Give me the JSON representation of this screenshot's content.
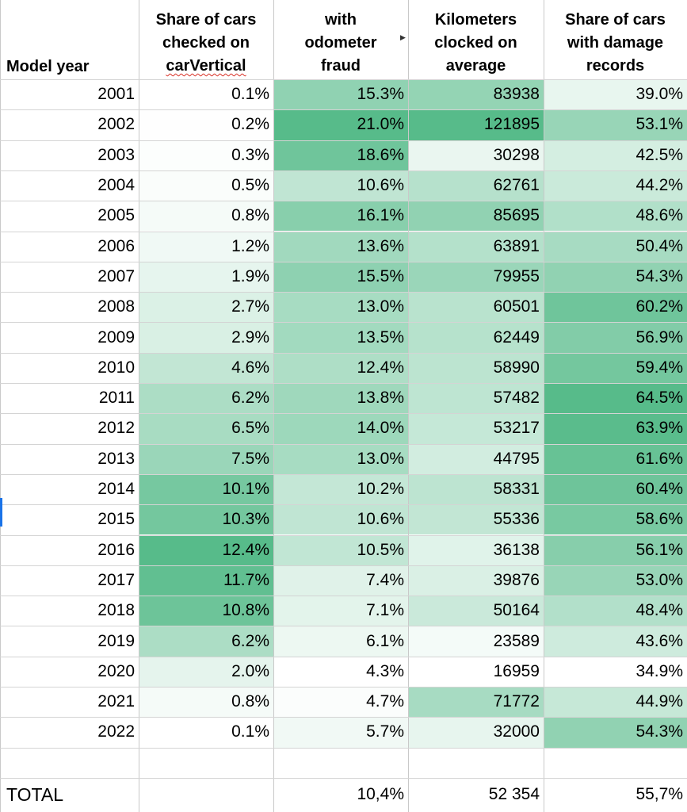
{
  "headers": {
    "model_year": "Model year",
    "share_checked": [
      "Share of cars",
      "checked on",
      "carVertical"
    ],
    "odometer_fraud": [
      "with",
      "odometer",
      "fraud"
    ],
    "km_clocked": [
      "Kilometers",
      "clocked on",
      "average"
    ],
    "damage_records": [
      "Share of cars",
      "with damage",
      "records"
    ]
  },
  "rows": [
    {
      "year": "2001",
      "share": "0.1%",
      "fraud": "15.3%",
      "km": "83938",
      "damage": "39.0%"
    },
    {
      "year": "2002",
      "share": "0.2%",
      "fraud": "21.0%",
      "km": "121895",
      "damage": "53.1%"
    },
    {
      "year": "2003",
      "share": "0.3%",
      "fraud": "18.6%",
      "km": "30298",
      "damage": "42.5%"
    },
    {
      "year": "2004",
      "share": "0.5%",
      "fraud": "10.6%",
      "km": "62761",
      "damage": "44.2%"
    },
    {
      "year": "2005",
      "share": "0.8%",
      "fraud": "16.1%",
      "km": "85695",
      "damage": "48.6%"
    },
    {
      "year": "2006",
      "share": "1.2%",
      "fraud": "13.6%",
      "km": "63891",
      "damage": "50.4%"
    },
    {
      "year": "2007",
      "share": "1.9%",
      "fraud": "15.5%",
      "km": "79955",
      "damage": "54.3%"
    },
    {
      "year": "2008",
      "share": "2.7%",
      "fraud": "13.0%",
      "km": "60501",
      "damage": "60.2%"
    },
    {
      "year": "2009",
      "share": "2.9%",
      "fraud": "13.5%",
      "km": "62449",
      "damage": "56.9%"
    },
    {
      "year": "2010",
      "share": "4.6%",
      "fraud": "12.4%",
      "km": "58990",
      "damage": "59.4%"
    },
    {
      "year": "2011",
      "share": "6.2%",
      "fraud": "13.8%",
      "km": "57482",
      "damage": "64.5%"
    },
    {
      "year": "2012",
      "share": "6.5%",
      "fraud": "14.0%",
      "km": "53217",
      "damage": "63.9%"
    },
    {
      "year": "2013",
      "share": "7.5%",
      "fraud": "13.0%",
      "km": "44795",
      "damage": "61.6%"
    },
    {
      "year": "2014",
      "share": "10.1%",
      "fraud": "10.2%",
      "km": "58331",
      "damage": "60.4%"
    },
    {
      "year": "2015",
      "share": "10.3%",
      "fraud": "10.6%",
      "km": "55336",
      "damage": "58.6%"
    },
    {
      "year": "2016",
      "share": "12.4%",
      "fraud": "10.5%",
      "km": "36138",
      "damage": "56.1%"
    },
    {
      "year": "2017",
      "share": "11.7%",
      "fraud": "7.4%",
      "km": "39876",
      "damage": "53.0%"
    },
    {
      "year": "2018",
      "share": "10.8%",
      "fraud": "7.1%",
      "km": "50164",
      "damage": "48.4%"
    },
    {
      "year": "2019",
      "share": "6.2%",
      "fraud": "6.1%",
      "km": "23589",
      "damage": "43.6%"
    },
    {
      "year": "2020",
      "share": "2.0%",
      "fraud": "4.3%",
      "km": "16959",
      "damage": "34.9%"
    },
    {
      "year": "2021",
      "share": "0.8%",
      "fraud": "4.7%",
      "km": "71772",
      "damage": "44.9%"
    },
    {
      "year": "2022",
      "share": "0.1%",
      "fraud": "5.7%",
      "km": "32000",
      "damage": "54.3%"
    }
  ],
  "total": {
    "label": "TOTAL",
    "share": "",
    "fraud": "10,4%",
    "km": "52 354",
    "damage": "55,7%"
  },
  "colors": {
    "scale_low": "#ffffff",
    "scale_high": "#57bb8a",
    "grid": "#c9c9c9"
  }
}
